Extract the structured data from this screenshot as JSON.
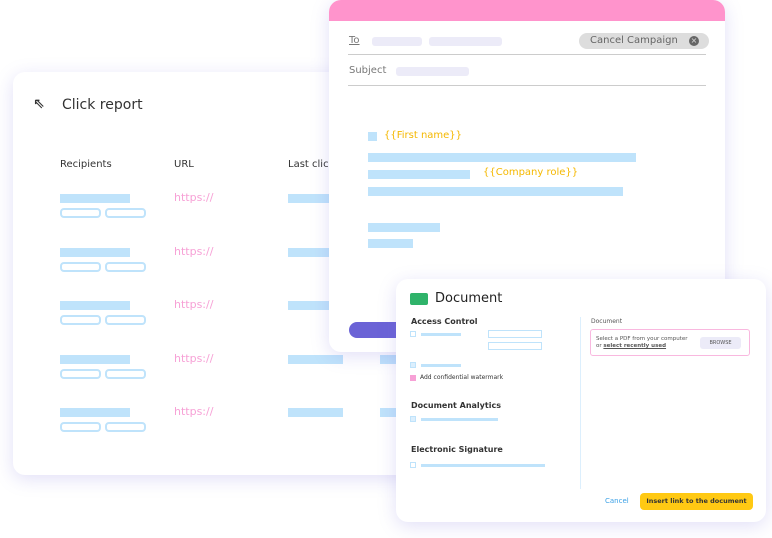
{
  "click_report": {
    "title": "Click report",
    "columns": [
      "Recipients",
      "URL",
      "Last click"
    ],
    "rows": [
      {
        "url": "https://"
      },
      {
        "url": "https://"
      },
      {
        "url": "https://"
      },
      {
        "url": "https://"
      },
      {
        "url": "https://"
      }
    ]
  },
  "email": {
    "to_label": "To",
    "subject_label": "Subject",
    "cancel_campaign": "Cancel Campaign",
    "first_name_tag": "{{First name}}",
    "company_role_tag": "{{Company role}}",
    "colors": {
      "header": "#ff94cc",
      "tag": "#f5b800",
      "button": "#6b63d6"
    }
  },
  "document": {
    "title": "Document",
    "access_control": "Access Control",
    "watermark_label": "Add confidential watermark",
    "document_analytics": "Document Analytics",
    "electronic_signature": "Electronic Signature",
    "document_label": "Document",
    "select_pdf": "Select a PDF from your computer",
    "or": "or",
    "select_recent": "select recently used",
    "browse": "BROWSE",
    "cancel": "Cancel",
    "insert": "Insert link to the document"
  }
}
